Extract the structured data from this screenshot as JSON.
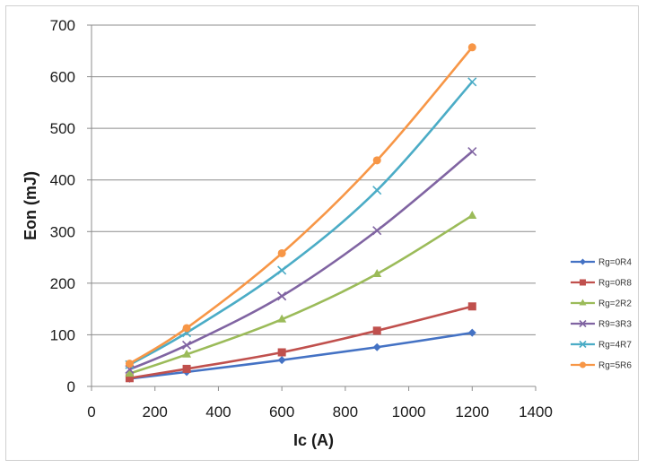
{
  "chart_data": {
    "type": "line",
    "title": "",
    "xlabel": "Ic (A)",
    "ylabel": "Eon (mJ)",
    "xlim": [
      0,
      1400
    ],
    "ylim": [
      0,
      700
    ],
    "xticks": [
      0,
      200,
      400,
      600,
      800,
      1000,
      1200,
      1400
    ],
    "yticks": [
      0,
      100,
      200,
      300,
      400,
      500,
      600,
      700
    ],
    "grid": "horizontal",
    "legend_position": "right",
    "x": [
      120,
      300,
      600,
      900,
      1200
    ],
    "series": [
      {
        "name": "Rg=0R4",
        "color": "#4472c4",
        "marker": "diamond",
        "values": [
          15,
          28,
          51,
          76,
          104
        ]
      },
      {
        "name": "Rg=0R8",
        "color": "#c0504d",
        "marker": "square",
        "values": [
          16,
          34,
          66,
          108,
          155
        ]
      },
      {
        "name": "Rg=2R2",
        "color": "#9bbb59",
        "marker": "triangle",
        "values": [
          25,
          62,
          130,
          218,
          331
        ]
      },
      {
        "name": "R9=3R3",
        "color": "#8064a2",
        "marker": "x",
        "values": [
          33,
          80,
          175,
          302,
          455
        ]
      },
      {
        "name": "Rg=4R7",
        "color": "#4bacc6",
        "marker": "x",
        "values": [
          42,
          104,
          225,
          380,
          590
        ]
      },
      {
        "name": "Rg=5R6",
        "color": "#f79646",
        "marker": "circle",
        "values": [
          44,
          113,
          258,
          438,
          657
        ]
      }
    ]
  }
}
